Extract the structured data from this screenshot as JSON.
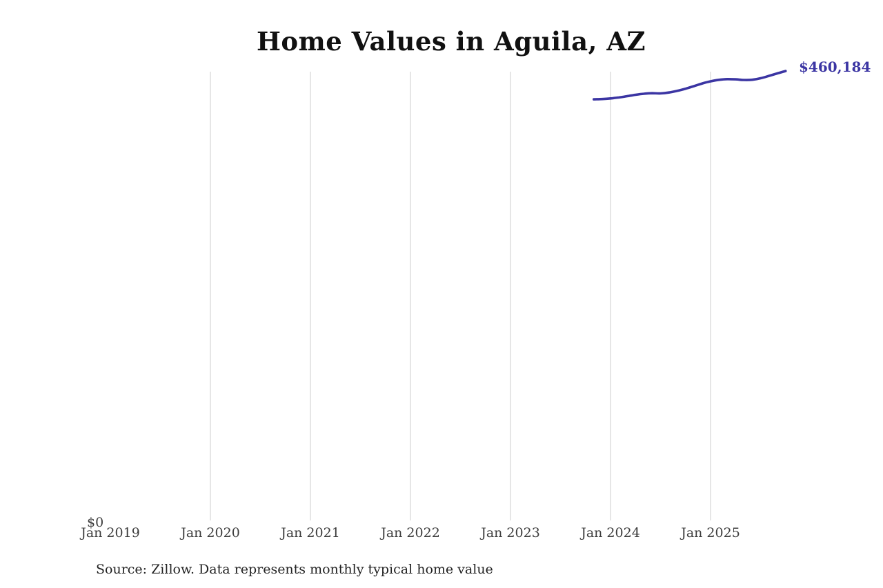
{
  "title": "Home Values in Aguila, AZ",
  "latest_value_label": "$460,184",
  "y_zero_label": "$0",
  "source_note": "Source: Zillow. Data represents monthly typical home value",
  "colors": {
    "line": "#3b35a3",
    "annotation_text": "#3b35a3",
    "grid": "#cccccc",
    "axis_text": "#3d3d3d",
    "title_text": "#111111",
    "source_text": "#222222",
    "background": "#ffffff"
  },
  "chart_data": {
    "type": "line",
    "title": "Home Values in Aguila, AZ",
    "series_name": "Monthly typical home value",
    "x": [
      "2023-11",
      "2023-12",
      "2024-01",
      "2024-02",
      "2024-03",
      "2024-04",
      "2024-05",
      "2024-06",
      "2024-07",
      "2024-08",
      "2024-09",
      "2024-10",
      "2024-11",
      "2024-12",
      "2025-01",
      "2025-02",
      "2025-03",
      "2025-04",
      "2025-05",
      "2025-06",
      "2025-07",
      "2025-08",
      "2025-09",
      "2025-10"
    ],
    "values": [
      431400,
      431700,
      432300,
      433300,
      434600,
      436000,
      437100,
      437600,
      437400,
      438300,
      440000,
      442200,
      444800,
      447500,
      449700,
      451200,
      451900,
      451700,
      451100,
      451300,
      452800,
      455200,
      457700,
      460184
    ],
    "x_tick_labels": [
      "Jan 2019",
      "Jan 2020",
      "Jan 2021",
      "Jan 2022",
      "Jan 2023",
      "Jan 2024",
      "Jan 2025"
    ],
    "y_tick_labels": [
      "$0"
    ],
    "xlabel": "",
    "ylabel": "",
    "ylim": [
      0,
      470000
    ],
    "grid": "vertical-only",
    "legend": "none",
    "annotation": "$460,184"
  }
}
